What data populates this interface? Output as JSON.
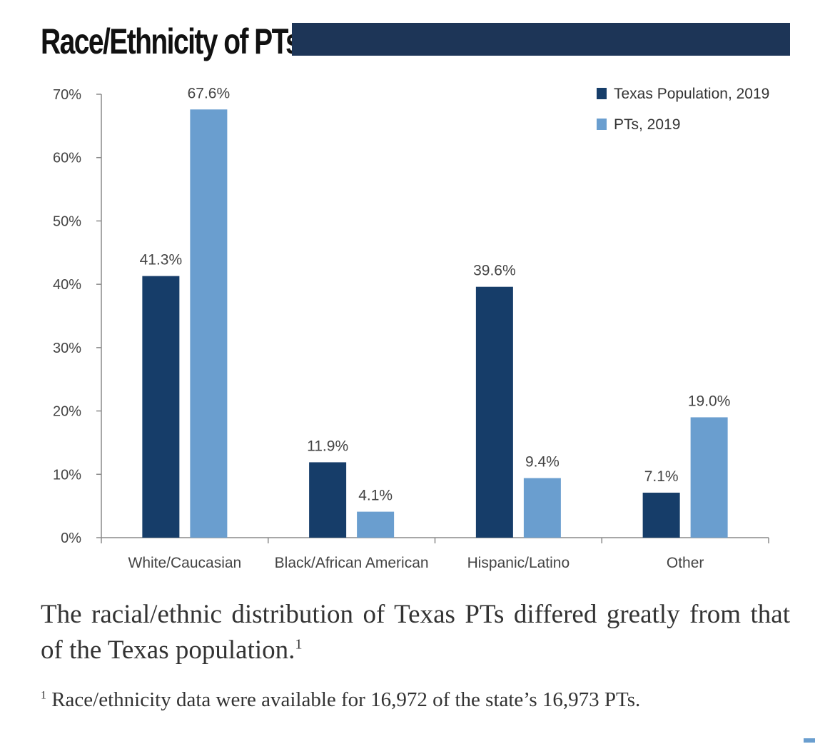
{
  "header": {
    "title": "Race/Ethnicity of PTs"
  },
  "chart_data": {
    "type": "bar",
    "categories": [
      "White/Caucasian",
      "Black/African American",
      "Hispanic/Latino",
      "Other"
    ],
    "series": [
      {
        "name": "Texas Population, 2019",
        "values": [
          41.3,
          11.9,
          39.6,
          7.1
        ],
        "color": "#163d69"
      },
      {
        "name": "PTs, 2019",
        "values": [
          67.6,
          4.1,
          9.4,
          19.0
        ],
        "color": "#6a9ecf"
      }
    ],
    "ylim": [
      0,
      70
    ],
    "yticks": [
      "0%",
      "10%",
      "20%",
      "30%",
      "40%",
      "50%",
      "60%",
      "70%"
    ],
    "legend_position": "top-right",
    "value_suffix": "%"
  },
  "caption": {
    "text": "The racial/ethnic distribution of Texas PTs differed greatly from that of the Texas population.",
    "footnote_marker": "1"
  },
  "footnote": {
    "marker": "1",
    "text": " Race/ethnicity data were available for 16,972 of the state’s 16,973 PTs."
  }
}
